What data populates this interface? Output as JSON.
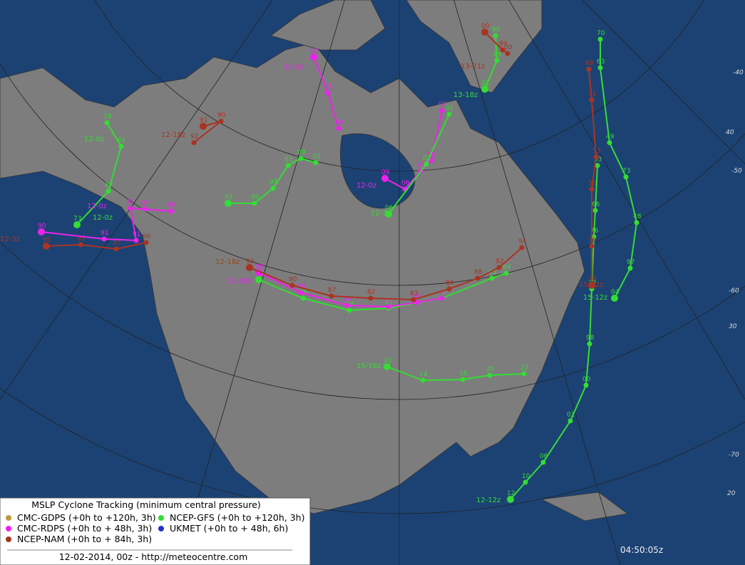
{
  "legend": {
    "title": "MSLP Cyclone Tracking (minimum central pressure)",
    "items": [
      {
        "label": "CMC-GDPS (+0h to +120h, 3h)",
        "color": "#c09a3a"
      },
      {
        "label": "NCEP-GFS (+0h to +120h, 3h)",
        "color": "#33dd33"
      },
      {
        "label": "CMC-RDPS (+0h to +  48h, 3h)",
        "color": "#ee22ee"
      },
      {
        "label": "UKMET (+0h to +  48h, 6h)",
        "color": "#2233cc"
      },
      {
        "label": "NCEP-NAM (+0h to +  84h, 3h)",
        "color": "#aa3322"
      }
    ],
    "footer": "12-02-2014, 00z - http://meteocentre.com"
  },
  "time": "04:50:05z",
  "graticule_labels": [
    "-40",
    "40",
    "-50",
    "-60",
    "30",
    "-70",
    "20"
  ],
  "tracks": [
    {
      "model": 1,
      "start": "15-18z",
      "points": [
        "10",
        "14",
        "16",
        "20",
        "22"
      ]
    },
    {
      "model": 1,
      "start": "12-12z",
      "points": [
        "12",
        "10",
        "06",
        "02",
        "00",
        "98",
        "77",
        "76",
        "66",
        "53"
      ]
    },
    {
      "model": 1,
      "start": "15-12z",
      "points": [
        "04",
        "97",
        "48",
        "73",
        "49",
        "63",
        "70"
      ]
    },
    {
      "model": 4,
      "start": "15-12z",
      "points": [
        "77",
        "76",
        "58",
        "53",
        "31",
        "69"
      ]
    },
    {
      "model": 1,
      "start": "12-18z",
      "points": [
        "93",
        "88",
        "84",
        "87",
        "88",
        "93",
        "94"
      ]
    },
    {
      "model": 2,
      "start": "12-18z",
      "points": [
        "90",
        "88",
        "85",
        "87",
        "82",
        "84"
      ]
    },
    {
      "model": 4,
      "start": "12-18z",
      "points": [
        "90",
        "90",
        "87",
        "82",
        "83",
        "86",
        "88",
        "92",
        "94"
      ]
    },
    {
      "model": 1,
      "start": "12-9z",
      "points": [
        "73",
        "67",
        "61",
        "78"
      ]
    },
    {
      "model": 4,
      "start": "12-3z",
      "points": [
        "95",
        "95",
        "97",
        "96"
      ]
    },
    {
      "model": 2,
      "start": "12-0z",
      "points": [
        "90",
        "91",
        "91",
        "87",
        "87",
        "88"
      ]
    },
    {
      "model": 1,
      "start": "12-0z",
      "points": [
        "93",
        "99",
        "97",
        "03",
        "09",
        "02"
      ]
    },
    {
      "model": 2,
      "start": "12-0z",
      "points": [
        "09",
        "06",
        "01",
        "99",
        "02"
      ]
    },
    {
      "model": 1,
      "start": "12-3z",
      "points": [
        "06",
        "02",
        "01"
      ]
    },
    {
      "model": 1,
      "start": "13-18z",
      "points": [
        "01",
        "99",
        "99"
      ]
    },
    {
      "model": 4,
      "start": "13-21z",
      "points": [
        "00",
        "99",
        "00"
      ]
    },
    {
      "model": 2,
      "start": "12-3z",
      "points": [
        "04",
        "01",
        "00"
      ]
    },
    {
      "model": 4,
      "start": "12-18z",
      "points": [
        "91",
        "90",
        "92"
      ]
    }
  ]
}
